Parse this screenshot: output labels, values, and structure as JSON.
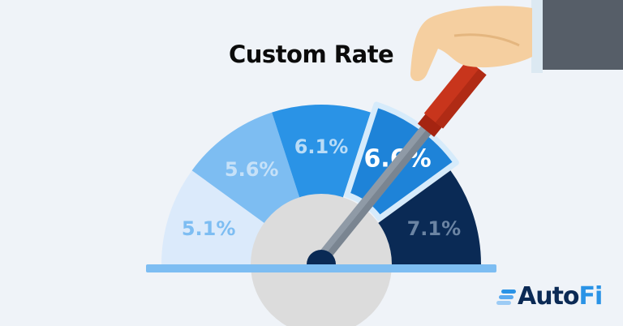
{
  "title": "Custom Rate",
  "gauge": {
    "selected_index": 3,
    "segments": [
      {
        "label": "5.1%",
        "fill": "#dbeafb",
        "text_color": "#7dbdf2"
      },
      {
        "label": "5.6%",
        "fill": "#7dbdf2",
        "text_color": "#c6e1f8"
      },
      {
        "label": "6.1%",
        "fill": "#2a93e6",
        "text_color": "#b9dcf7"
      },
      {
        "label": "6.6%",
        "fill": "#1e83d8",
        "text_color": "#ffffff"
      },
      {
        "label": "7.1%",
        "fill": "#0a2a55",
        "text_color": "#6b84a3"
      }
    ],
    "hub_color": "#dcdcdc",
    "base_color": "#7dbdf2",
    "needle_color": "#8f9aa6",
    "handle_color": "#c8351c"
  },
  "logo": {
    "part1": "Auto",
    "part2": "Fi"
  }
}
